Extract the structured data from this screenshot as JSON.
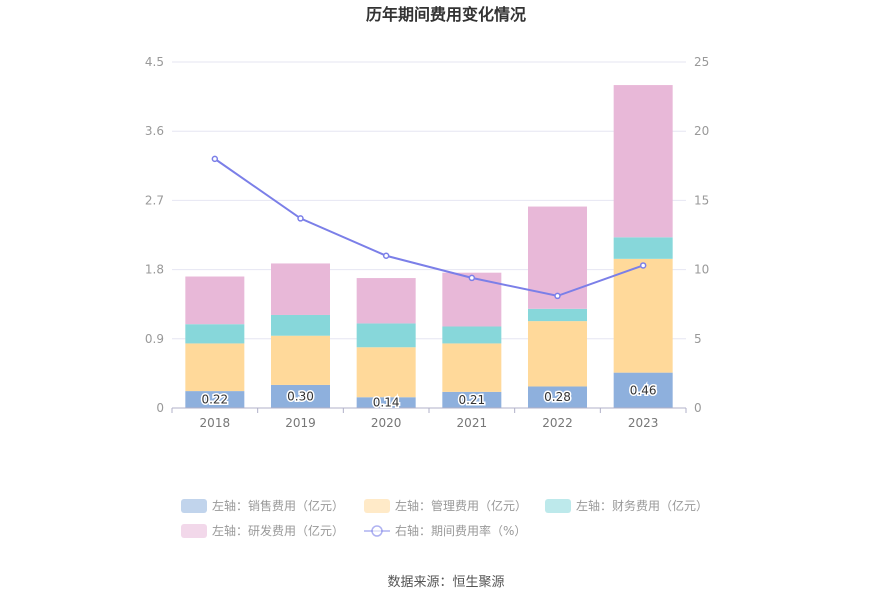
{
  "chart_data": {
    "type": "bar",
    "title": "历年期间费用变化情况",
    "categories": [
      "2018",
      "2019",
      "2020",
      "2021",
      "2022",
      "2023"
    ],
    "series": [
      {
        "name": "左轴：销售费用（亿元）",
        "axis": "left",
        "stack": true,
        "color": "#8eb0dd",
        "values": [
          0.22,
          0.3,
          0.14,
          0.21,
          0.28,
          0.46
        ]
      },
      {
        "name": "左轴：管理费用（亿元）",
        "axis": "left",
        "stack": true,
        "color": "#ffd99a",
        "values": [
          0.62,
          0.64,
          0.65,
          0.63,
          0.85,
          1.48
        ]
      },
      {
        "name": "左轴：财务费用（亿元）",
        "axis": "left",
        "stack": true,
        "color": "#87d7da",
        "values": [
          0.25,
          0.27,
          0.31,
          0.22,
          0.16,
          0.28
        ]
      },
      {
        "name": "左轴：研发费用（亿元）",
        "axis": "left",
        "stack": true,
        "color": "#e8b8d8",
        "values": [
          0.62,
          0.67,
          0.59,
          0.7,
          1.33,
          1.98
        ]
      },
      {
        "name": "右轴：期间费用率（%）",
        "axis": "right",
        "type": "line",
        "color": "#7b7fe8",
        "values": [
          18.0,
          13.7,
          11.0,
          9.4,
          8.1,
          10.3
        ]
      }
    ],
    "label_series": 0,
    "y_left": {
      "min": 0,
      "max": 4.5,
      "ticks": [
        "0",
        "0.9",
        "1.8",
        "2.7",
        "3.6",
        "4.5"
      ],
      "tick_values": [
        0,
        0.9,
        1.8,
        2.7,
        3.6,
        4.5
      ]
    },
    "y_right": {
      "min": 0,
      "max": 25,
      "ticks": [
        "0",
        "5",
        "10",
        "15",
        "20",
        "25"
      ],
      "tick_values": [
        0,
        5,
        10,
        15,
        20,
        25
      ]
    },
    "grid": true,
    "legend_position": "bottom"
  },
  "source": "数据来源：恒生聚源"
}
